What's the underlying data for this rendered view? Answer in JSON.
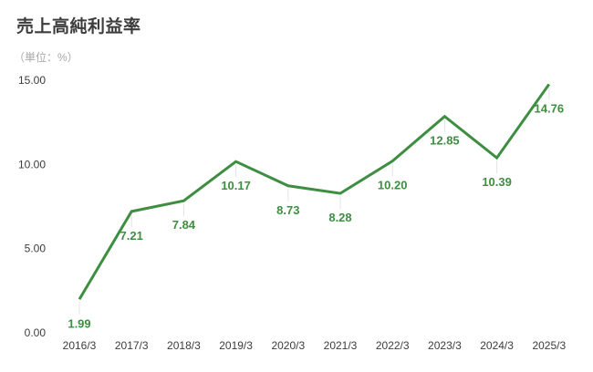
{
  "page": {
    "title": "売上高純利益率",
    "unit_label": "（単位：%）"
  },
  "chart_data": {
    "type": "line",
    "title": "売上高純利益率",
    "subtitle": "（単位：%）",
    "categories": [
      "2016/3",
      "2017/3",
      "2018/3",
      "2019/3",
      "2020/3",
      "2021/3",
      "2022/3",
      "2023/3",
      "2024/3",
      "2025/3"
    ],
    "values": [
      1.99,
      7.21,
      7.84,
      10.17,
      8.73,
      8.28,
      10.2,
      12.85,
      10.39,
      14.76
    ],
    "data_labels": [
      "1.99",
      "7.21",
      "7.84",
      "10.17",
      "8.73",
      "8.28",
      "10.20",
      "12.85",
      "10.39",
      "14.76"
    ],
    "xlabel": "",
    "ylabel": "",
    "ylim": [
      0,
      15
    ],
    "yticks": [
      0,
      5,
      10,
      15
    ],
    "ytick_labels": [
      "0.00",
      "5.00",
      "10.00",
      "15.00"
    ],
    "grid": false,
    "legend_position": "none",
    "line_color": "#3e8e41",
    "label_color": "#3e8e41",
    "leader_line_color": "#e3e3e3",
    "axis_text_color": "#3c3c3c"
  }
}
